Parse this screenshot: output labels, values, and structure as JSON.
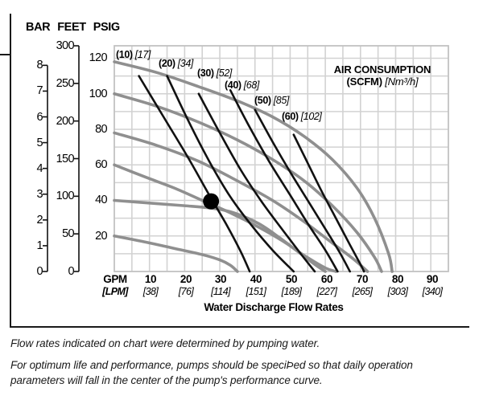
{
  "page": {
    "axis_header": {
      "bar": "BAR",
      "feet": "FEET",
      "psig": "PSIG"
    }
  },
  "chart_data": {
    "type": "line",
    "title": "AIR CONSUMPTION",
    "title_units_bold": "(SCFM)",
    "title_units_italic": "[Nm³/h]",
    "x_axis": {
      "label": "Water Discharge Flow Rates",
      "range_gpm": [
        0,
        95
      ],
      "grid_step_gpm": 5,
      "columns": [
        {
          "gpm": "GPM",
          "lpm": "[LPM]"
        },
        {
          "gpm": "10",
          "lpm": "[38]"
        },
        {
          "gpm": "20",
          "lpm": "[76]"
        },
        {
          "gpm": "30",
          "lpm": "[114]"
        },
        {
          "gpm": "40",
          "lpm": "[151]"
        },
        {
          "gpm": "50",
          "lpm": "[189]"
        },
        {
          "gpm": "60",
          "lpm": "[227]"
        },
        {
          "gpm": "70",
          "lpm": "[265]"
        },
        {
          "gpm": "80",
          "lpm": "[303]"
        },
        {
          "gpm": "90",
          "lpm": "[340]"
        }
      ]
    },
    "y_axis": {
      "range_psig": [
        0,
        127
      ],
      "grid_step_psig": 10,
      "bar_ticks": [
        8,
        7,
        6,
        5,
        4,
        3,
        2,
        1,
        0
      ],
      "feet_ticks": [
        300,
        250,
        200,
        150,
        100,
        50,
        0
      ],
      "psig_ticks": [
        120,
        100,
        80,
        60,
        40,
        20
      ]
    },
    "pump_curves": [
      {
        "inlet_psig": 120,
        "points": [
          [
            0,
            118
          ],
          [
            12,
            112
          ],
          [
            24,
            104
          ],
          [
            35,
            96
          ],
          [
            45,
            87
          ],
          [
            54,
            76
          ],
          [
            62,
            63
          ],
          [
            69,
            47
          ],
          [
            74,
            30
          ],
          [
            78,
            10
          ],
          [
            79,
            0
          ]
        ]
      },
      {
        "inlet_psig": 100,
        "points": [
          [
            0,
            100
          ],
          [
            12,
            93
          ],
          [
            24,
            84
          ],
          [
            35,
            74
          ],
          [
            45,
            63
          ],
          [
            54,
            51
          ],
          [
            62,
            37
          ],
          [
            69,
            22
          ],
          [
            74,
            8
          ],
          [
            76,
            0
          ]
        ]
      },
      {
        "inlet_psig": 80,
        "points": [
          [
            0,
            78
          ],
          [
            12,
            71
          ],
          [
            24,
            62
          ],
          [
            35,
            51
          ],
          [
            45,
            40
          ],
          [
            54,
            28
          ],
          [
            62,
            16
          ],
          [
            68,
            7
          ],
          [
            72,
            0
          ]
        ]
      },
      {
        "inlet_psig": 60,
        "points": [
          [
            0,
            60
          ],
          [
            9,
            53
          ],
          [
            17,
            47
          ],
          [
            25,
            40
          ],
          [
            33,
            33
          ],
          [
            41,
            25
          ],
          [
            48,
            17
          ],
          [
            54,
            9
          ],
          [
            60,
            2
          ],
          [
            63,
            0
          ]
        ]
      },
      {
        "inlet_psig": 40,
        "points": [
          [
            0,
            40
          ],
          [
            10,
            38.5
          ],
          [
            20,
            37
          ],
          [
            28,
            35.5
          ],
          [
            34,
            33
          ],
          [
            41,
            27
          ],
          [
            47,
            19
          ],
          [
            53,
            10
          ],
          [
            57,
            4
          ],
          [
            60,
            0
          ]
        ]
      },
      {
        "inlet_psig": 20,
        "points": [
          [
            0,
            20
          ],
          [
            9,
            16.5
          ],
          [
            17,
            13
          ],
          [
            25,
            9.5
          ],
          [
            30,
            6.5
          ],
          [
            33,
            3.5
          ],
          [
            35,
            0
          ]
        ]
      }
    ],
    "air_consumption_lines": [
      {
        "scfm": "(10)",
        "nm3_per_h": "[17]",
        "points": [
          [
            7,
            110
          ],
          [
            14,
            87
          ],
          [
            21,
            64
          ],
          [
            27,
            43
          ],
          [
            32,
            26
          ],
          [
            36,
            11
          ],
          [
            38.5,
            0
          ]
        ]
      },
      {
        "scfm": "(20)",
        "nm3_per_h": "[34]",
        "points": [
          [
            15,
            110
          ],
          [
            21,
            85
          ],
          [
            27,
            62
          ],
          [
            33,
            42
          ],
          [
            39,
            26
          ],
          [
            45,
            12
          ],
          [
            51,
            0
          ]
        ]
      },
      {
        "scfm": "(30)",
        "nm3_per_h": "[52]",
        "points": [
          [
            24,
            100
          ],
          [
            30,
            78
          ],
          [
            36,
            57
          ],
          [
            42,
            39
          ],
          [
            48,
            23
          ],
          [
            53,
            10
          ],
          [
            57,
            0
          ]
        ]
      },
      {
        "scfm": "(40)",
        "nm3_per_h": "[68]",
        "points": [
          [
            33,
            102
          ],
          [
            38,
            83
          ],
          [
            44,
            62
          ],
          [
            50,
            43
          ],
          [
            55,
            27
          ],
          [
            60,
            12
          ],
          [
            63.5,
            0
          ]
        ]
      },
      {
        "scfm": "(50)",
        "nm3_per_h": "[85]",
        "points": [
          [
            40,
            91
          ],
          [
            45,
            73
          ],
          [
            50,
            56
          ],
          [
            55,
            40
          ],
          [
            60,
            24
          ],
          [
            64,
            11
          ],
          [
            67,
            0
          ]
        ]
      },
      {
        "scfm": "(60)",
        "nm3_per_h": "[102]",
        "points": [
          [
            51,
            77
          ],
          [
            55,
            61
          ],
          [
            59,
            45
          ],
          [
            63,
            30
          ],
          [
            67,
            15
          ],
          [
            70,
            4
          ],
          [
            71,
            0
          ]
        ]
      }
    ],
    "operating_point": {
      "gpm": 27.5,
      "psig": 39.5
    },
    "colors": {
      "pump_curve": "#8f8f8f",
      "air_line": "#111111",
      "grid": "#d2d2d2",
      "plot_border": "#c2c2c2",
      "frame": "#1a1a1a"
    }
  },
  "footer": {
    "line1": "Flow rates indicated on chart were determined by pumping water.",
    "line2": "For optimum life and performance, pumps should be speciÞed so that daily operation",
    "line3": "parameters will fall in the center of the pump's performance curve."
  }
}
